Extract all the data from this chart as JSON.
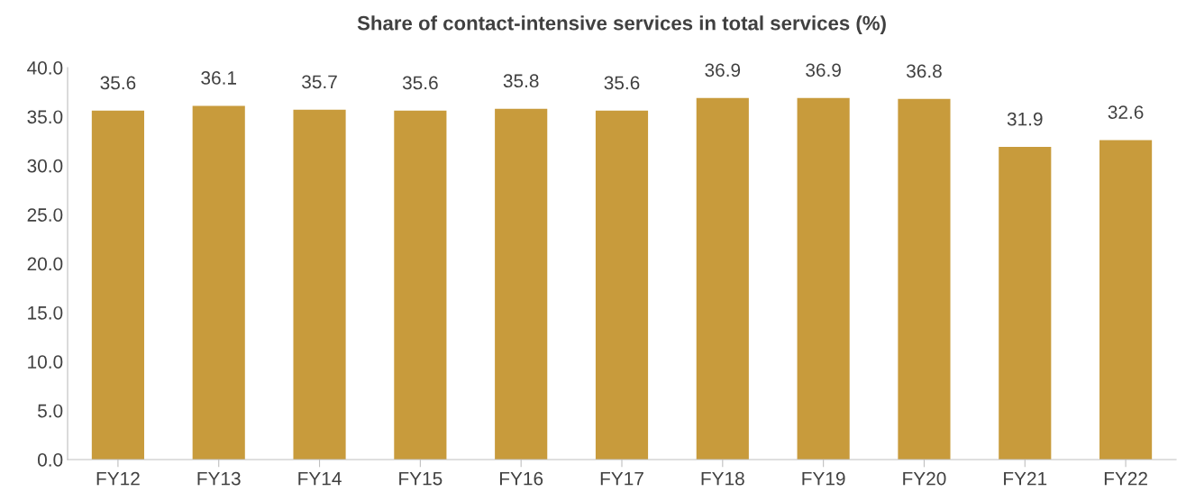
{
  "chart_data": {
    "type": "bar",
    "title": "Share of contact-intensive services in total services (%)",
    "categories": [
      "FY12",
      "FY13",
      "FY14",
      "FY15",
      "FY16",
      "FY17",
      "FY18",
      "FY19",
      "FY20",
      "FY21",
      "FY22"
    ],
    "values": [
      35.6,
      36.1,
      35.7,
      35.6,
      35.8,
      35.6,
      36.9,
      36.9,
      36.8,
      31.9,
      32.6
    ],
    "color": "#c89b3c",
    "ylim": [
      0,
      40
    ],
    "yticks": [
      {
        "value": 0,
        "label": "0.0"
      },
      {
        "value": 5,
        "label": "5.0"
      },
      {
        "value": 10,
        "label": "10.0"
      },
      {
        "value": 15,
        "label": "15.0"
      },
      {
        "value": 20,
        "label": "20.0"
      },
      {
        "value": 25,
        "label": "25.0"
      },
      {
        "value": 30,
        "label": "30.0"
      },
      {
        "value": 35,
        "label": "35.0"
      },
      {
        "value": 40,
        "label": "40.0"
      }
    ],
    "data_labels": true,
    "grid": false,
    "legend": false
  }
}
